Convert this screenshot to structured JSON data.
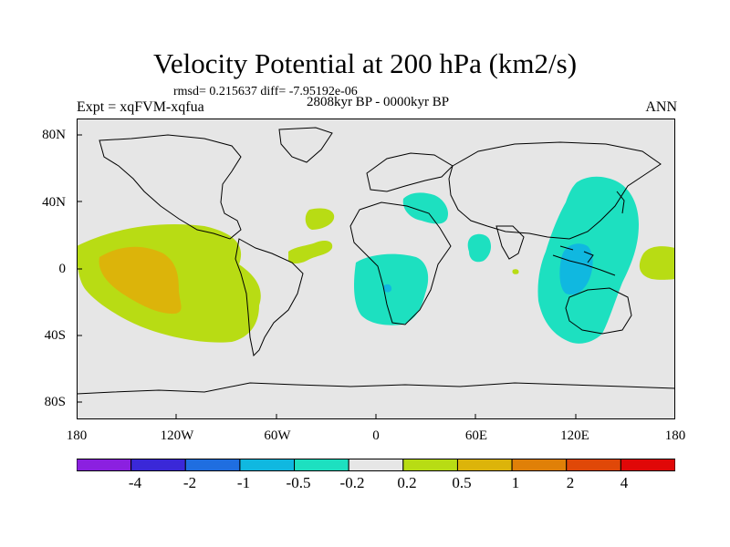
{
  "title": "Velocity Potential at 200 hPa (km2/s)",
  "stats": "rmsd= 0.215637 diff= -7.95192e-06",
  "left_label": "Expt = xqFVM-xqfua",
  "center_label": "2808kyr BP - 0000kyr BP",
  "right_label": "ANN",
  "y_ticks": [
    "80N",
    "40N",
    "0",
    "40S",
    "80S"
  ],
  "x_ticks": [
    "180",
    "120W",
    "60W",
    "0",
    "60E",
    "120E",
    "180"
  ],
  "colorbar": {
    "labels": [
      "-4",
      "-2",
      "-1",
      "-0.5",
      "-0.2",
      "0.2",
      "0.5",
      "1",
      "2",
      "4"
    ],
    "colors": [
      "#8b20e0",
      "#3a28d8",
      "#1f6ee0",
      "#10b8e0",
      "#1de0c0",
      "#e6e6e6",
      "#b8dc14",
      "#dcb40a",
      "#e08008",
      "#e04808",
      "#e00808"
    ]
  },
  "colors": {
    "background": "#e6e6e6",
    "positive_light": "#b8dc14",
    "positive_medium": "#dcb40a",
    "negative_light": "#1de0c0",
    "negative_medium": "#10b8e0"
  }
}
